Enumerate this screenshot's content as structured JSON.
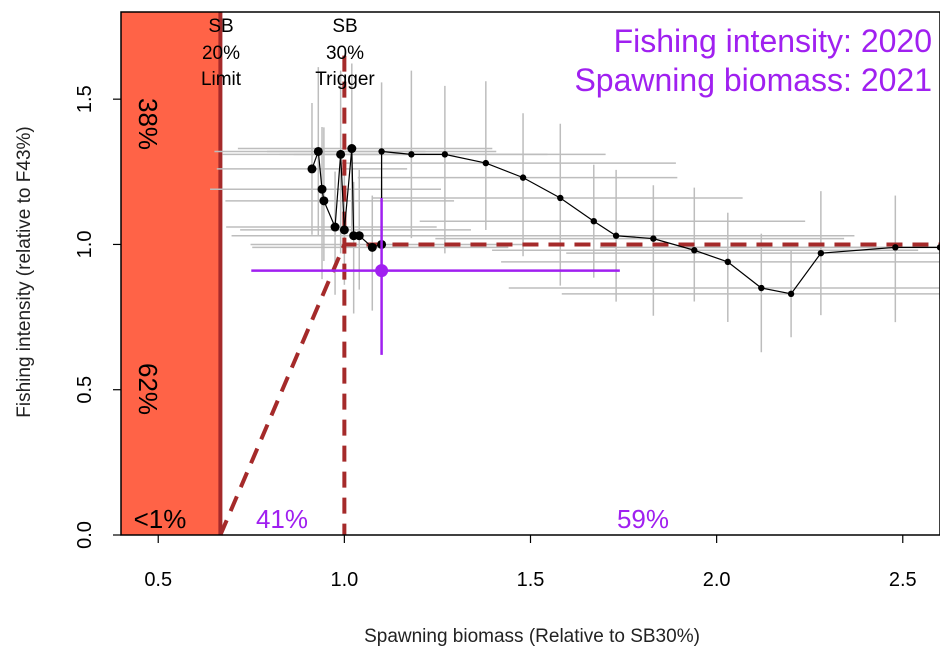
{
  "chart_data": {
    "type": "scatter",
    "xlabel": "Spawning biomass (Relative to SB30%)",
    "ylabel": "Fishing intensity (relative to F43%)",
    "xlim": [
      0.4,
      2.6
    ],
    "ylim": [
      0.0,
      1.8
    ],
    "xticks": [
      "0.5",
      "1.0",
      "1.5",
      "2.0",
      "2.5"
    ],
    "yticks": [
      "0.0",
      "0.5",
      "1.0",
      "1.5"
    ],
    "grid": false,
    "annotations": {
      "fishing_intensity_year": "Fishing intensity: 2020",
      "spawning_biomass_year": "Spawning biomass: 2021",
      "limit_line": {
        "x": 0.667,
        "lines": [
          "SB",
          "20%",
          "Limit"
        ]
      },
      "trigger_line": {
        "x": 1.0,
        "lines": [
          "SB",
          "30%",
          "Trigger"
        ]
      },
      "probabilities": {
        "above_target_f": "38%",
        "below_target_f": "62%",
        "below_limit": "<1%",
        "between_limit_and_trigger": "41%",
        "above_trigger": "59%"
      }
    },
    "control_rule": {
      "points": [
        [
          0.667,
          0.0
        ],
        [
          1.0,
          1.0
        ],
        [
          2.6,
          1.0
        ]
      ],
      "color": "#a52a2a"
    },
    "trajectory": {
      "points": [
        [
          0.913,
          1.26
        ],
        [
          0.93,
          1.32
        ],
        [
          0.94,
          1.19
        ],
        [
          0.945,
          1.15
        ],
        [
          0.975,
          1.06
        ],
        [
          0.99,
          1.31
        ],
        [
          1.0,
          1.05
        ],
        [
          1.02,
          1.33
        ],
        [
          1.025,
          1.03
        ],
        [
          1.04,
          1.03
        ],
        [
          1.075,
          0.99
        ],
        [
          1.1,
          1.0
        ],
        [
          1.1,
          1.32
        ],
        [
          1.18,
          1.31
        ],
        [
          1.27,
          1.31
        ],
        [
          1.38,
          1.28
        ],
        [
          1.48,
          1.23
        ],
        [
          1.58,
          1.16
        ],
        [
          1.67,
          1.08
        ],
        [
          1.73,
          1.03
        ],
        [
          1.83,
          1.02
        ],
        [
          1.94,
          0.98
        ],
        [
          2.03,
          0.94
        ],
        [
          2.12,
          0.85
        ],
        [
          2.2,
          0.83
        ],
        [
          2.28,
          0.97
        ],
        [
          2.48,
          0.99
        ],
        [
          2.6,
          0.99
        ]
      ],
      "color": "#000000"
    },
    "current": {
      "x": 1.1,
      "y": 0.91,
      "x_interval": [
        0.75,
        1.74
      ],
      "y_interval": [
        0.62,
        1.16
      ],
      "color": "#a020f0"
    },
    "uncertainty_color": "#bdbdbd",
    "limit_region_color": "#ff6347",
    "limit_line_color": "#a52a2a"
  }
}
